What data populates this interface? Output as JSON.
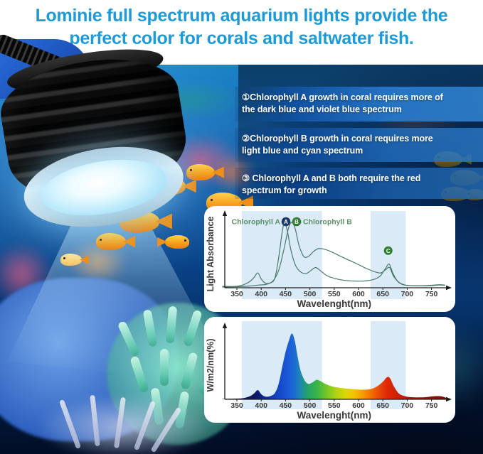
{
  "header": {
    "title_line1": "Lominie full spectrum aquarium lights provide the",
    "title_line2": "perfect color for corals and saltwater fish.",
    "title_color": "#1d9ad8"
  },
  "callouts": [
    {
      "line1": "①Chlorophyll A growth in coral requires more of",
      "line2": "the dark blue and violet blue spectrum"
    },
    {
      "line1": "②Chlorophyll B growth in coral requires more",
      "line2": "light blue and cyan spectrum"
    },
    {
      "line1": "③ Chlorophyll A and B both require the red",
      "line2": "spectrum for growth"
    }
  ],
  "palette": {
    "title_blue": "#1d9ad8",
    "callout_band_blue": "#2e7fd0",
    "highlight_band_blue": "#daeaf7",
    "curve_green": "#4a7a6b",
    "badge_a_navy": "#1c3a66",
    "badge_b_green": "#2f7d32"
  },
  "chart_data": [
    {
      "type": "line",
      "title": "",
      "xlabel": "Wavelenght(nm)",
      "ylabel": "Light Absorbance",
      "x_ticks": [
        350,
        400,
        450,
        500,
        550,
        600,
        650,
        700,
        750
      ],
      "xlim": [
        320,
        785
      ],
      "ylim": [
        0,
        1
      ],
      "grid": false,
      "legend_position": "top",
      "highlight_bands_nm": [
        [
          360,
          525
        ],
        [
          625,
          697
        ]
      ],
      "band_color": "#daeaf7",
      "axis_color": "#1c1c1c",
      "legend_text_color": "#5b8f67",
      "legend": [
        {
          "label": "Chlorophyll A",
          "badge": "A",
          "badge_color": "#1c3a66"
        },
        {
          "label": "Chlorophyll B",
          "badge": "B",
          "badge_color": "#2f7d32"
        }
      ],
      "annotation_badge": {
        "label": "C",
        "x_nm": 661,
        "y_frac": 0.55,
        "color": "#2f7d32"
      },
      "series": [
        {
          "name": "Chlorophyll A",
          "color": "#4a7a6b",
          "points": [
            [
              320,
              0.02
            ],
            [
              345,
              0.02
            ],
            [
              362,
              0.04
            ],
            [
              378,
              0.1
            ],
            [
              386,
              0.16
            ],
            [
              393,
              0.22
            ],
            [
              400,
              0.13
            ],
            [
              408,
              0.07
            ],
            [
              418,
              0.07
            ],
            [
              428,
              0.14
            ],
            [
              436,
              0.45
            ],
            [
              443,
              0.82
            ],
            [
              448,
              0.97
            ],
            [
              454,
              0.83
            ],
            [
              461,
              0.56
            ],
            [
              470,
              0.34
            ],
            [
              480,
              0.24
            ],
            [
              492,
              0.21
            ],
            [
              503,
              0.26
            ],
            [
              512,
              0.3
            ],
            [
              522,
              0.25
            ],
            [
              535,
              0.18
            ],
            [
              550,
              0.14
            ],
            [
              570,
              0.11
            ],
            [
              590,
              0.1
            ],
            [
              612,
              0.1
            ],
            [
              630,
              0.12
            ],
            [
              644,
              0.17
            ],
            [
              655,
              0.28
            ],
            [
              663,
              0.35
            ],
            [
              671,
              0.21
            ],
            [
              681,
              0.09
            ],
            [
              694,
              0.04
            ],
            [
              715,
              0.03
            ],
            [
              745,
              0.035
            ],
            [
              766,
              0.045
            ],
            [
              778,
              0.04
            ]
          ]
        },
        {
          "name": "Chlorophyll B",
          "color": "#4a7a6b",
          "points": [
            [
              320,
              0.01
            ],
            [
              350,
              0.015
            ],
            [
              375,
              0.025
            ],
            [
              395,
              0.04
            ],
            [
              410,
              0.05
            ],
            [
              424,
              0.1
            ],
            [
              436,
              0.26
            ],
            [
              447,
              0.58
            ],
            [
              456,
              0.88
            ],
            [
              463,
              0.97
            ],
            [
              470,
              0.87
            ],
            [
              478,
              0.62
            ],
            [
              488,
              0.46
            ],
            [
              498,
              0.47
            ],
            [
              508,
              0.54
            ],
            [
              518,
              0.58
            ],
            [
              530,
              0.57
            ],
            [
              545,
              0.53
            ],
            [
              562,
              0.47
            ],
            [
              580,
              0.41
            ],
            [
              598,
              0.35
            ],
            [
              615,
              0.29
            ],
            [
              632,
              0.24
            ],
            [
              646,
              0.22
            ],
            [
              656,
              0.27
            ],
            [
              664,
              0.3
            ],
            [
              672,
              0.17
            ],
            [
              683,
              0.08
            ],
            [
              696,
              0.04
            ],
            [
              715,
              0.03
            ],
            [
              745,
              0.03
            ],
            [
              766,
              0.04
            ],
            [
              778,
              0.035
            ]
          ]
        }
      ]
    },
    {
      "type": "area",
      "title": "",
      "xlabel": "Wavelenght(nm)",
      "ylabel": "W/m2/nm(%)",
      "x_ticks": [
        350,
        400,
        450,
        500,
        550,
        600,
        650,
        700,
        750
      ],
      "xlim": [
        320,
        785
      ],
      "ylim": [
        0,
        1
      ],
      "grid": false,
      "highlight_bands_nm": [
        [
          360,
          525
        ],
        [
          625,
          697
        ]
      ],
      "band_color": "#daeaf7",
      "axis_color": "#1c1c1c",
      "spectrum_gradient": [
        [
          320,
          "#0c1140"
        ],
        [
          385,
          "#11175c"
        ],
        [
          400,
          "#0f2080"
        ],
        [
          430,
          "#1240c0"
        ],
        [
          455,
          "#1b5ad8"
        ],
        [
          468,
          "#1e6ad2"
        ],
        [
          480,
          "#1e88b0"
        ],
        [
          495,
          "#28a06a"
        ],
        [
          512,
          "#33b24e"
        ],
        [
          530,
          "#66c22e"
        ],
        [
          552,
          "#aad214"
        ],
        [
          572,
          "#d8d705"
        ],
        [
          590,
          "#f2c400"
        ],
        [
          608,
          "#f79d00"
        ],
        [
          625,
          "#f27200"
        ],
        [
          640,
          "#e94e0a"
        ],
        [
          658,
          "#df2a08"
        ],
        [
          672,
          "#d62206"
        ],
        [
          700,
          "#b21a06"
        ],
        [
          745,
          "#8f1505"
        ],
        [
          780,
          "#6f1004"
        ]
      ],
      "points": [
        [
          320,
          0.005
        ],
        [
          350,
          0.01
        ],
        [
          365,
          0.02
        ],
        [
          377,
          0.045
        ],
        [
          386,
          0.09
        ],
        [
          393,
          0.135
        ],
        [
          400,
          0.075
        ],
        [
          408,
          0.04
        ],
        [
          418,
          0.045
        ],
        [
          428,
          0.09
        ],
        [
          436,
          0.23
        ],
        [
          444,
          0.5
        ],
        [
          451,
          0.72
        ],
        [
          457,
          0.86
        ],
        [
          463,
          0.965
        ],
        [
          469,
          0.86
        ],
        [
          475,
          0.62
        ],
        [
          481,
          0.42
        ],
        [
          489,
          0.28
        ],
        [
          497,
          0.225
        ],
        [
          506,
          0.25
        ],
        [
          514,
          0.285
        ],
        [
          522,
          0.265
        ],
        [
          532,
          0.225
        ],
        [
          545,
          0.19
        ],
        [
          560,
          0.17
        ],
        [
          578,
          0.155
        ],
        [
          595,
          0.145
        ],
        [
          610,
          0.14
        ],
        [
          625,
          0.15
        ],
        [
          637,
          0.185
        ],
        [
          649,
          0.25
        ],
        [
          659,
          0.325
        ],
        [
          665,
          0.305
        ],
        [
          673,
          0.185
        ],
        [
          683,
          0.085
        ],
        [
          694,
          0.048
        ],
        [
          706,
          0.032
        ],
        [
          722,
          0.028
        ],
        [
          740,
          0.033
        ],
        [
          756,
          0.045
        ],
        [
          768,
          0.046
        ],
        [
          776,
          0.032
        ],
        [
          782,
          0.012
        ]
      ]
    }
  ]
}
